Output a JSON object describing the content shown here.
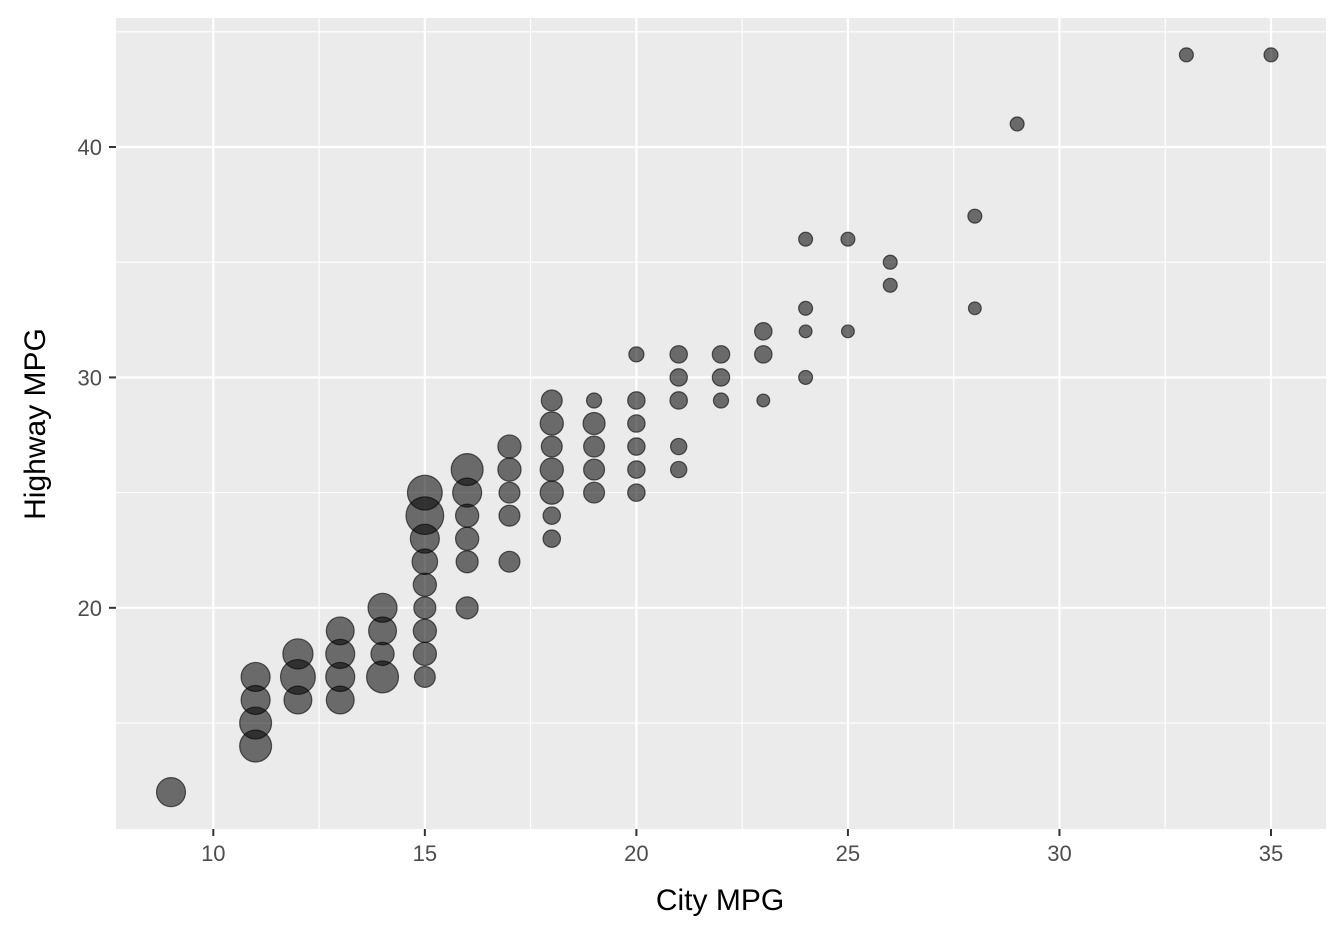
{
  "chart_data": {
    "type": "scatter",
    "title": "",
    "xlabel": "City MPG",
    "ylabel": "Highway MPG",
    "xlim": [
      7.7,
      36.3
    ],
    "ylim": [
      10.4,
      45.6
    ],
    "x_ticks": [
      10,
      15,
      20,
      25,
      30,
      35
    ],
    "x_tick_labels": [
      "10",
      "15",
      "20",
      "25",
      "30",
      "35"
    ],
    "y_ticks": [
      20,
      30,
      40
    ],
    "y_tick_labels": [
      "20",
      "30",
      "40"
    ],
    "grid": true,
    "legend": "none",
    "size_encoding": "larger points for lower-economy vehicles",
    "colors": {
      "panel": "#ebebeb",
      "grid": "#ffffff",
      "point": "#000000"
    },
    "points": [
      {
        "x": 9,
        "y": 12,
        "size": 5.0
      },
      {
        "x": 11,
        "y": 14,
        "size": 5.5
      },
      {
        "x": 11,
        "y": 15,
        "size": 5.5
      },
      {
        "x": 11,
        "y": 16,
        "size": 5.0
      },
      {
        "x": 11,
        "y": 17,
        "size": 5.0
      },
      {
        "x": 12,
        "y": 16,
        "size": 4.8
      },
      {
        "x": 12,
        "y": 17,
        "size": 6.0
      },
      {
        "x": 12,
        "y": 18,
        "size": 5.2
      },
      {
        "x": 13,
        "y": 16,
        "size": 4.8
      },
      {
        "x": 13,
        "y": 17,
        "size": 5.0
      },
      {
        "x": 13,
        "y": 18,
        "size": 5.0
      },
      {
        "x": 13,
        "y": 19,
        "size": 4.8
      },
      {
        "x": 14,
        "y": 17,
        "size": 5.5
      },
      {
        "x": 14,
        "y": 18,
        "size": 4.0
      },
      {
        "x": 14,
        "y": 19,
        "size": 4.8
      },
      {
        "x": 14,
        "y": 20,
        "size": 5.0
      },
      {
        "x": 15,
        "y": 17,
        "size": 3.6
      },
      {
        "x": 15,
        "y": 18,
        "size": 4.0
      },
      {
        "x": 15,
        "y": 19,
        "size": 4.0
      },
      {
        "x": 15,
        "y": 20,
        "size": 3.8
      },
      {
        "x": 15,
        "y": 21,
        "size": 4.0
      },
      {
        "x": 15,
        "y": 22,
        "size": 4.4
      },
      {
        "x": 15,
        "y": 23,
        "size": 5.0
      },
      {
        "x": 15,
        "y": 24,
        "size": 6.5
      },
      {
        "x": 15,
        "y": 25,
        "size": 6.0
      },
      {
        "x": 16,
        "y": 20,
        "size": 3.8
      },
      {
        "x": 16,
        "y": 22,
        "size": 3.8
      },
      {
        "x": 16,
        "y": 23,
        "size": 4.0
      },
      {
        "x": 16,
        "y": 24,
        "size": 4.0
      },
      {
        "x": 16,
        "y": 25,
        "size": 5.0
      },
      {
        "x": 16,
        "y": 26,
        "size": 5.5
      },
      {
        "x": 17,
        "y": 22,
        "size": 3.6
      },
      {
        "x": 17,
        "y": 24,
        "size": 3.6
      },
      {
        "x": 17,
        "y": 25,
        "size": 3.6
      },
      {
        "x": 17,
        "y": 26,
        "size": 4.0
      },
      {
        "x": 17,
        "y": 27,
        "size": 4.0
      },
      {
        "x": 18,
        "y": 23,
        "size": 3.0
      },
      {
        "x": 18,
        "y": 24,
        "size": 3.0
      },
      {
        "x": 18,
        "y": 25,
        "size": 4.0
      },
      {
        "x": 18,
        "y": 26,
        "size": 4.0
      },
      {
        "x": 18,
        "y": 27,
        "size": 3.6
      },
      {
        "x": 18,
        "y": 28,
        "size": 4.0
      },
      {
        "x": 18,
        "y": 29,
        "size": 3.6
      },
      {
        "x": 19,
        "y": 25,
        "size": 3.6
      },
      {
        "x": 19,
        "y": 26,
        "size": 3.6
      },
      {
        "x": 19,
        "y": 27,
        "size": 3.6
      },
      {
        "x": 19,
        "y": 28,
        "size": 3.8
      },
      {
        "x": 19,
        "y": 29,
        "size": 2.6
      },
      {
        "x": 20,
        "y": 25,
        "size": 3.0
      },
      {
        "x": 20,
        "y": 26,
        "size": 3.0
      },
      {
        "x": 20,
        "y": 27,
        "size": 3.0
      },
      {
        "x": 20,
        "y": 28,
        "size": 3.0
      },
      {
        "x": 20,
        "y": 29,
        "size": 3.0
      },
      {
        "x": 20,
        "y": 31,
        "size": 2.6
      },
      {
        "x": 21,
        "y": 26,
        "size": 2.8
      },
      {
        "x": 21,
        "y": 27,
        "size": 2.8
      },
      {
        "x": 21,
        "y": 29,
        "size": 3.0
      },
      {
        "x": 21,
        "y": 30,
        "size": 3.0
      },
      {
        "x": 21,
        "y": 31,
        "size": 3.0
      },
      {
        "x": 22,
        "y": 29,
        "size": 2.6
      },
      {
        "x": 22,
        "y": 30,
        "size": 3.0
      },
      {
        "x": 22,
        "y": 31,
        "size": 3.0
      },
      {
        "x": 23,
        "y": 29,
        "size": 2.2
      },
      {
        "x": 23,
        "y": 31,
        "size": 3.0
      },
      {
        "x": 23,
        "y": 32,
        "size": 3.0
      },
      {
        "x": 24,
        "y": 30,
        "size": 2.4
      },
      {
        "x": 24,
        "y": 32,
        "size": 2.2
      },
      {
        "x": 24,
        "y": 33,
        "size": 2.4
      },
      {
        "x": 24,
        "y": 36,
        "size": 2.4
      },
      {
        "x": 25,
        "y": 32,
        "size": 2.2
      },
      {
        "x": 25,
        "y": 36,
        "size": 2.4
      },
      {
        "x": 26,
        "y": 34,
        "size": 2.4
      },
      {
        "x": 26,
        "y": 35,
        "size": 2.4
      },
      {
        "x": 28,
        "y": 33,
        "size": 2.2
      },
      {
        "x": 28,
        "y": 37,
        "size": 2.4
      },
      {
        "x": 29,
        "y": 41,
        "size": 2.4
      },
      {
        "x": 33,
        "y": 44,
        "size": 2.4
      },
      {
        "x": 35,
        "y": 44,
        "size": 2.4
      }
    ]
  }
}
